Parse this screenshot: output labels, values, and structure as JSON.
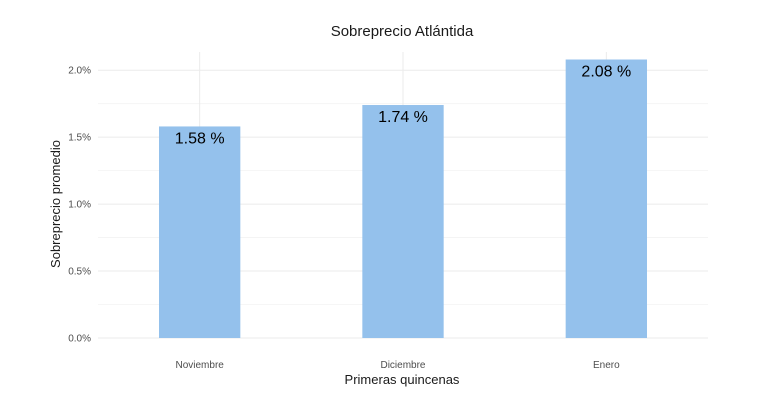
{
  "chart_data": {
    "type": "bar",
    "title": "Sobreprecio Atlántida",
    "xlabel": "Primeras quincenas",
    "ylabel": "Sobreprecio promedio",
    "categories": [
      "Noviembre",
      "Diciembre",
      "Enero"
    ],
    "values": [
      1.58,
      1.74,
      2.08
    ],
    "data_labels": [
      "1.58 %",
      "1.74 %",
      "2.08 %"
    ],
    "ylim": [
      0,
      2.2
    ],
    "yticks": [
      0,
      0.5,
      1.0,
      1.5,
      2.0
    ],
    "ytick_labels": [
      "0.0%",
      "0.5%",
      "1.0%",
      "1.5%",
      "2.0%"
    ],
    "bar_color": "#94c1ec",
    "grid": true,
    "legend": "none"
  }
}
